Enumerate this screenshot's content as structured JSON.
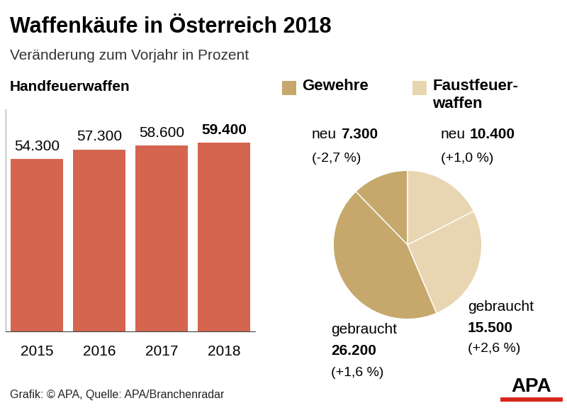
{
  "title": "Waffenkäufe in Österreich 2018",
  "subtitle": "Veränderung zum Vorjahr in Prozent",
  "source": "Grafik: © APA, Quelle: APA/Branchenradar",
  "logo": "APA",
  "chart_data": [
    {
      "type": "bar",
      "title": "Handfeuerwaffen",
      "categories": [
        "2015",
        "2016",
        "2017",
        "2018"
      ],
      "values": [
        54300,
        57300,
        58600,
        59400
      ],
      "value_labels": [
        "54.300",
        "57.300",
        "58.600",
        "59.400"
      ],
      "color": "#d4654f",
      "ylim": [
        0,
        70000
      ],
      "yticks": [],
      "tick_labels": "x",
      "data_labels": true
    },
    {
      "type": "pie",
      "data_labels": true,
      "series": [
        {
          "name": "Gewehre",
          "color": "#c6a86c",
          "categories": [
            "neu",
            "gebraucht"
          ],
          "values": [
            7300,
            26200
          ],
          "value_labels": [
            "7.300",
            "26.200"
          ],
          "changes": [
            -2.7,
            1.6
          ],
          "change_labels": [
            "(-2,7 %)",
            "(+1,6 %)"
          ]
        },
        {
          "name": "Faustfeuer-\nwaffen",
          "color": "#e8d6b2",
          "categories": [
            "neu",
            "gebraucht"
          ],
          "values": [
            10400,
            15500
          ],
          "value_labels": [
            "10.400",
            "15.500"
          ],
          "changes": [
            1.0,
            2.6
          ],
          "change_labels": [
            "(+1,0 %)",
            "(+2,6 %)"
          ]
        }
      ]
    }
  ]
}
